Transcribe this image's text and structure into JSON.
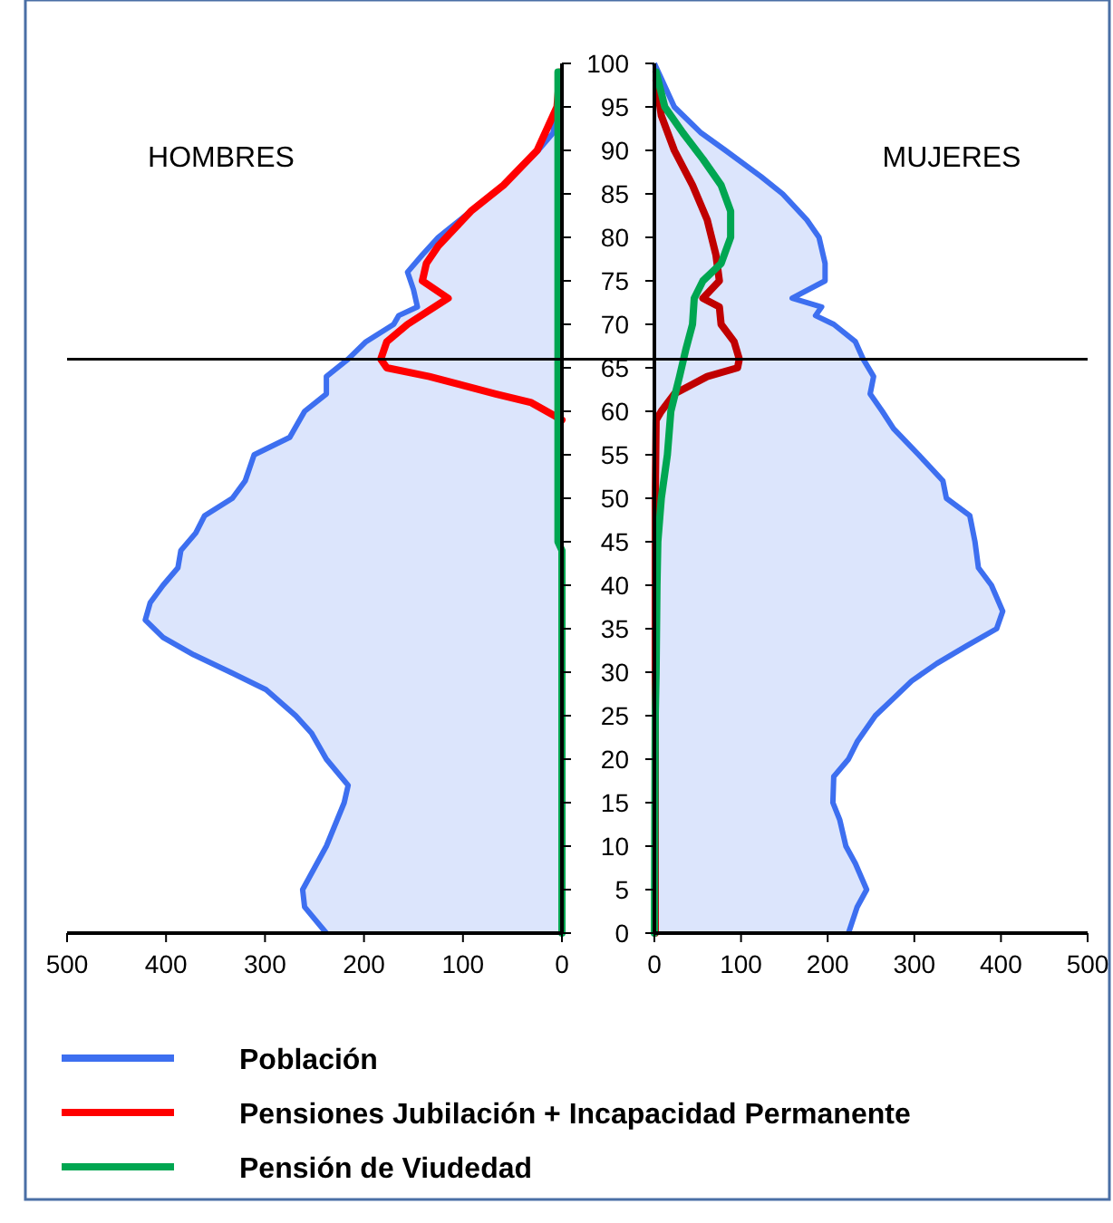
{
  "chart_data": [
    {
      "type": "line",
      "title": "HOMBRES",
      "xlim": [
        500,
        0
      ],
      "xticks": [
        500,
        400,
        300,
        200,
        100,
        0
      ],
      "ylim": [
        0,
        100
      ],
      "yticks": [
        0,
        5,
        10,
        15,
        20,
        25,
        30,
        35,
        40,
        45,
        50,
        55,
        60,
        65,
        70,
        75,
        80,
        85,
        90,
        95,
        100
      ],
      "tick_labels": "x",
      "legend": "bottom",
      "ref_lines": [
        {
          "axis": "y",
          "value": 66
        }
      ],
      "series": [
        {
          "name": "Población",
          "type": "area",
          "color": "#3d6ff0",
          "x": [
            238,
            260,
            262,
            238,
            220,
            216,
            238,
            253,
            269,
            299,
            335,
            372,
            403,
            421,
            416,
            403,
            388,
            385,
            370,
            361,
            333,
            320,
            311,
            275,
            260,
            238,
            238,
            216,
            198,
            170,
            165,
            146,
            150,
            156,
            141,
            125,
            92,
            59,
            24,
            9,
            5,
            2
          ],
          "values": [
            0,
            3,
            5,
            10,
            15,
            17,
            20,
            23,
            25,
            28,
            30,
            32,
            34,
            36,
            38,
            40,
            42,
            44,
            46,
            48,
            50,
            52,
            55,
            57,
            60,
            62,
            64,
            66,
            68,
            70,
            71,
            72,
            74,
            76,
            78,
            80,
            83,
            86,
            90,
            92,
            95,
            99
          ]
        },
        {
          "name": "Pensiones Jubilación + Incapacidad Permanente",
          "color": "#ff0000",
          "x": [
            0,
            31,
            67,
            134,
            177,
            183,
            177,
            156,
            115,
            141,
            137,
            125,
            92,
            59,
            25,
            5,
            2
          ],
          "values": [
            59,
            61,
            62,
            64,
            65,
            66,
            68,
            70,
            73,
            75,
            77,
            79,
            83,
            86,
            90,
            95,
            99
          ]
        },
        {
          "name": "Pensión de Viudedad",
          "color": "#00a651",
          "x": [
            0,
            0,
            4,
            4
          ],
          "values": [
            0,
            44,
            45,
            99
          ]
        }
      ]
    },
    {
      "type": "line",
      "title": "MUJERES",
      "xlim": [
        0,
        500
      ],
      "xticks": [
        0,
        100,
        200,
        300,
        400,
        500
      ],
      "ylim": [
        0,
        100
      ],
      "yticks": [
        0,
        5,
        10,
        15,
        20,
        25,
        30,
        35,
        40,
        45,
        50,
        55,
        60,
        65,
        70,
        75,
        80,
        85,
        90,
        95,
        100
      ],
      "ref_lines": [
        {
          "axis": "y",
          "value": 66
        }
      ],
      "series": [
        {
          "type": "area",
          "color": "#3d6ff0",
          "x": [
            224,
            234,
            245,
            232,
            221,
            214,
            206,
            207,
            224,
            234,
            255,
            276,
            297,
            326,
            360,
            395,
            402,
            389,
            374,
            370,
            364,
            337,
            333,
            305,
            276,
            263,
            249,
            253,
            241,
            232,
            207,
            186,
            193,
            159,
            197,
            197,
            190,
            176,
            148,
            123,
            82,
            54,
            23,
            0
          ],
          "values": [
            0,
            3,
            5,
            8,
            10,
            13,
            15,
            18,
            20,
            22,
            25,
            27,
            29,
            31,
            33,
            35,
            37,
            40,
            42,
            45,
            48,
            50,
            52,
            55,
            58,
            60,
            62,
            64,
            66,
            68,
            70,
            71,
            72,
            73,
            75,
            77,
            80,
            82,
            85,
            87,
            90,
            92,
            95,
            100
          ]
        },
        {
          "color": "#c00000",
          "x": [
            1,
            1,
            2,
            8,
            23,
            61,
            96,
            98,
            92,
            77,
            75,
            56,
            75,
            71,
            61,
            44,
            23,
            8,
            2
          ],
          "values": [
            0,
            50,
            59,
            60,
            62,
            64,
            65,
            66,
            68,
            70,
            72,
            73,
            75,
            78,
            82,
            86,
            90,
            94,
            98
          ]
        },
        {
          "color": "#00a651",
          "x": [
            0,
            1,
            2,
            3,
            4,
            8,
            15,
            19,
            29,
            36,
            44,
            46,
            56,
            77,
            88,
            88,
            77,
            56,
            33,
            12,
            2
          ],
          "values": [
            0,
            25,
            30,
            40,
            45,
            50,
            55,
            60,
            64,
            67,
            70,
            73,
            75,
            77,
            80,
            83,
            86,
            89,
            92,
            95,
            99
          ]
        }
      ]
    }
  ]
}
